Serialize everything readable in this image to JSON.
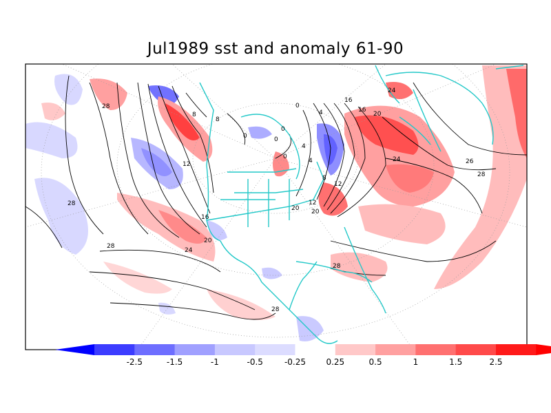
{
  "title": "Jul1989 sst and anomaly 61-90",
  "map": {
    "projection": "polar stereographic (North America / North Atlantic / North Pacific)",
    "overlay": "SST contours (degC)",
    "shading": "SST anomaly vs 1961-90 (degC)"
  },
  "contour_labels": [
    "28",
    "28",
    "28",
    "28",
    "28",
    "28",
    "26",
    "24",
    "24",
    "24",
    "20",
    "20",
    "20",
    "20",
    "16",
    "16",
    "16",
    "12",
    "12",
    "12",
    "8",
    "8",
    "8",
    "4",
    "4",
    "4",
    "0",
    "0",
    "0",
    "0",
    "0"
  ],
  "colorbar": {
    "ticks": [
      "-2.5",
      "-1.5",
      "-1",
      "-0.5",
      "-0.25",
      "0.25",
      "0.5",
      "1",
      "1.5",
      "2.5"
    ],
    "colors": [
      "#0000ff",
      "#3c3cff",
      "#6e6eff",
      "#a0a0ff",
      "#c8c8ff",
      "#dcdcff",
      "#ffffff",
      "#ffc8c8",
      "#ffa0a0",
      "#ff7070",
      "#ff4a4a",
      "#ff1a1a",
      "#ff0000"
    ]
  }
}
